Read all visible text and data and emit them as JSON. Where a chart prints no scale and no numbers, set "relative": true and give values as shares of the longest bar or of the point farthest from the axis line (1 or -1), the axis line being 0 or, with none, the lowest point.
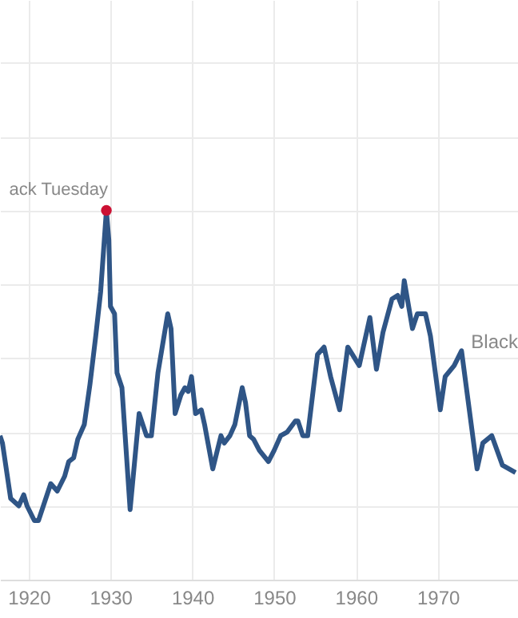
{
  "chart_data": {
    "type": "line",
    "relative": true,
    "grid": true,
    "x": [
      1916.5,
      1916.8,
      1917.8,
      1918.8,
      1919.4,
      1919.8,
      1920.7,
      1921.2,
      1922.7,
      1923.5,
      1924.4,
      1924.9,
      1925.5,
      1926.0,
      1926.8,
      1927.5,
      1928.2,
      1928.8,
      1929.5,
      1929.8,
      1930.0,
      1930.5,
      1930.8,
      1931.4,
      1932.4,
      1933.5,
      1934.4,
      1935.0,
      1935.8,
      1937.0,
      1937.4,
      1937.9,
      1938.6,
      1939.1,
      1939.5,
      1939.9,
      1940.4,
      1941.1,
      1941.5,
      1942.5,
      1943.5,
      1943.9,
      1944.6,
      1945.2,
      1946.1,
      1946.5,
      1947.0,
      1947.5,
      1948.2,
      1949.3,
      1950.0,
      1950.8,
      1951.6,
      1952.6,
      1952.9,
      1953.5,
      1954.1,
      1955.3,
      1956.1,
      1956.9,
      1958.0,
      1959.0,
      1960.4,
      1961.7,
      1962.5,
      1963.3,
      1964.4,
      1965.1,
      1965.6,
      1965.9,
      1966.9,
      1967.5,
      1968.5,
      1969.1,
      1970.3,
      1970.9,
      1972.0,
      1972.9,
      1974.8,
      1975.5,
      1976.6,
      1977.9,
      1979.5
    ],
    "series": [
      {
        "color": "#2f5586",
        "values": [
          0.39,
          0.37,
          0.22,
          0.2,
          0.23,
          0.2,
          0.16,
          0.16,
          0.26,
          0.24,
          0.28,
          0.32,
          0.33,
          0.38,
          0.42,
          0.53,
          0.66,
          0.78,
          1.0,
          0.92,
          0.74,
          0.72,
          0.56,
          0.52,
          0.19,
          0.45,
          0.39,
          0.39,
          0.56,
          0.72,
          0.68,
          0.45,
          0.5,
          0.52,
          0.51,
          0.55,
          0.45,
          0.46,
          0.42,
          0.3,
          0.39,
          0.37,
          0.39,
          0.42,
          0.52,
          0.48,
          0.39,
          0.38,
          0.35,
          0.32,
          0.35,
          0.39,
          0.4,
          0.43,
          0.43,
          0.39,
          0.39,
          0.61,
          0.63,
          0.55,
          0.46,
          0.63,
          0.58,
          0.71,
          0.57,
          0.67,
          0.76,
          0.77,
          0.74,
          0.81,
          0.68,
          0.72,
          0.72,
          0.66,
          0.46,
          0.55,
          0.58,
          0.62,
          0.3,
          0.37,
          0.39,
          0.31,
          0.29
        ]
      }
    ],
    "xlim": [
      1916.5,
      1979.8
    ],
    "xticks": [
      1920,
      1930,
      1940,
      1950,
      1960,
      1970
    ],
    "annotations": [
      {
        "text": "ack Tuesday",
        "x": 1929.5,
        "y": 1.0
      },
      "Black"
    ]
  }
}
